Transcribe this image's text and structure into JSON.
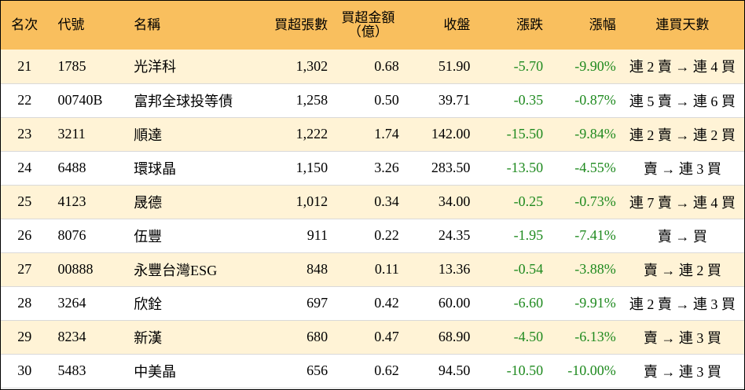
{
  "header": {
    "rank": "名次",
    "code": "代號",
    "name": "名稱",
    "net_buy_lots": "買超張數",
    "net_buy_amount_line1": "買超金額",
    "net_buy_amount_line2": "（億）",
    "close": "收盤",
    "change": "漲跌",
    "change_pct": "漲幅",
    "consecutive_days": "連買天數"
  },
  "colors": {
    "header_bg": "#f9bf5e",
    "alt_row_bg": "#fff3d6",
    "negative_text": "#1f8a1f"
  },
  "rows": [
    {
      "rank": "21",
      "code": "1785",
      "name": "光洋科",
      "lots": "1,302",
      "amount": "0.68",
      "close": "51.90",
      "change": "-5.70",
      "pct": "-9.90%",
      "streak": "連 2 賣 → 連 4 買"
    },
    {
      "rank": "22",
      "code": "00740B",
      "name": "富邦全球投等債",
      "lots": "1,258",
      "amount": "0.50",
      "close": "39.71",
      "change": "-0.35",
      "pct": "-0.87%",
      "streak": "連 5 賣 → 連 6 買"
    },
    {
      "rank": "23",
      "code": "3211",
      "name": "順達",
      "lots": "1,222",
      "amount": "1.74",
      "close": "142.00",
      "change": "-15.50",
      "pct": "-9.84%",
      "streak": "連 2 賣 → 連 2 買"
    },
    {
      "rank": "24",
      "code": "6488",
      "name": "環球晶",
      "lots": "1,150",
      "amount": "3.26",
      "close": "283.50",
      "change": "-13.50",
      "pct": "-4.55%",
      "streak": "賣 → 連 3 買"
    },
    {
      "rank": "25",
      "code": "4123",
      "name": "晟德",
      "lots": "1,012",
      "amount": "0.34",
      "close": "34.00",
      "change": "-0.25",
      "pct": "-0.73%",
      "streak": "連 7 賣 → 連 4 買"
    },
    {
      "rank": "26",
      "code": "8076",
      "name": "伍豐",
      "lots": "911",
      "amount": "0.22",
      "close": "24.35",
      "change": "-1.95",
      "pct": "-7.41%",
      "streak": "賣 → 買"
    },
    {
      "rank": "27",
      "code": "00888",
      "name": "永豐台灣ESG",
      "lots": "848",
      "amount": "0.11",
      "close": "13.36",
      "change": "-0.54",
      "pct": "-3.88%",
      "streak": "賣 → 連 2 買"
    },
    {
      "rank": "28",
      "code": "3264",
      "name": "欣銓",
      "lots": "697",
      "amount": "0.42",
      "close": "60.00",
      "change": "-6.60",
      "pct": "-9.91%",
      "streak": "連 2 賣 → 連 3 買"
    },
    {
      "rank": "29",
      "code": "8234",
      "name": "新漢",
      "lots": "680",
      "amount": "0.47",
      "close": "68.90",
      "change": "-4.50",
      "pct": "-6.13%",
      "streak": "賣 → 連 3 買"
    },
    {
      "rank": "30",
      "code": "5483",
      "name": "中美晶",
      "lots": "656",
      "amount": "0.62",
      "close": "94.50",
      "change": "-10.50",
      "pct": "-10.00%",
      "streak": "賣 → 連 3 買"
    }
  ]
}
